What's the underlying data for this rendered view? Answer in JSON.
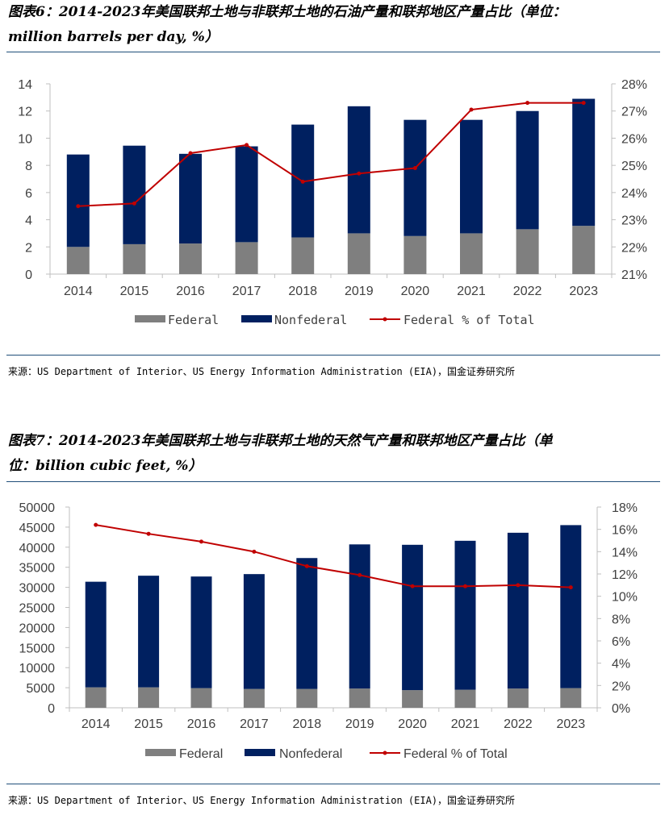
{
  "figures": [
    {
      "title": "图表6：2014-2023年美国联邦土地与非联邦土地的石油产量和联邦地区产量占比（单位：million barrels per day, %）",
      "title_line1": "图表6：2014-2023年美国联邦土地与非联邦土地的石油产量和联邦地区产量占比（单位：",
      "title_line2": "million barrels per day, %）",
      "source": "来源：US Department of Interior、US Energy Information Administration (EIA)，国金证券研究所"
    },
    {
      "title": "图表7：2014-2023年美国联邦土地与非联邦土地的天然气产量和联邦地区产量占比（单位：billion cubic feet, %）",
      "title_line1": "图表7：2014-2023年美国联邦土地与非联邦土地的天然气产量和联邦地区产量占比（单",
      "title_line2": "位：billion cubic feet, %）",
      "source": "来源：US Department of Interior、US Energy Information Administration (EIA)，国金证券研究所"
    }
  ],
  "colors": {
    "federal": "#7f7f7f",
    "nonfederal": "#002060",
    "share_line": "#c00000",
    "rule": "#1f4e79",
    "axis": "#bfbfbf"
  },
  "chart_data": [
    {
      "type": "bar",
      "stacked": true,
      "categories": [
        "2014",
        "2015",
        "2016",
        "2017",
        "2018",
        "2019",
        "2020",
        "2021",
        "2022",
        "2023"
      ],
      "series": [
        {
          "name": "Federal",
          "axis": "left",
          "values": [
            2.0,
            2.2,
            2.25,
            2.35,
            2.7,
            3.0,
            2.8,
            3.0,
            3.3,
            3.55
          ]
        },
        {
          "name": "Nonfederal",
          "axis": "left",
          "values": [
            6.8,
            7.25,
            6.6,
            7.05,
            8.3,
            9.35,
            8.55,
            8.35,
            8.7,
            9.35
          ]
        },
        {
          "name": "Federal % of Total",
          "axis": "right",
          "type": "line",
          "values": [
            23.5,
            23.6,
            25.45,
            25.75,
            24.4,
            24.7,
            24.9,
            27.05,
            27.3,
            27.3
          ]
        }
      ],
      "ylim": [
        0,
        14
      ],
      "yticks": [
        "0",
        "2",
        "4",
        "6",
        "8",
        "10",
        "12",
        "14"
      ],
      "y2lim": [
        21,
        28
      ],
      "y2ticks": [
        "21%",
        "22%",
        "23%",
        "24%",
        "25%",
        "26%",
        "27%",
        "28%"
      ],
      "grid": false,
      "legend_position": "bottom",
      "legend": [
        "Federal",
        "Nonfederal",
        "Federal % of Total"
      ]
    },
    {
      "type": "bar",
      "stacked": true,
      "categories": [
        "2014",
        "2015",
        "2016",
        "2017",
        "2018",
        "2019",
        "2020",
        "2021",
        "2022",
        "2023"
      ],
      "series": [
        {
          "name": "Federal",
          "axis": "left",
          "values": [
            5100,
            5100,
            4900,
            4700,
            4700,
            4800,
            4400,
            4500,
            4800,
            4900
          ]
        },
        {
          "name": "Nonfederal",
          "axis": "left",
          "values": [
            26300,
            27800,
            27800,
            28600,
            32600,
            35900,
            36200,
            37100,
            38800,
            40600
          ]
        },
        {
          "name": "Federal % of Total",
          "axis": "right",
          "type": "line",
          "values": [
            16.4,
            15.6,
            14.9,
            14.0,
            12.7,
            11.9,
            10.9,
            10.9,
            11.0,
            10.8
          ]
        }
      ],
      "ylim": [
        0,
        50000
      ],
      "yticks": [
        "0",
        "5000",
        "10000",
        "15000",
        "20000",
        "25000",
        "30000",
        "35000",
        "40000",
        "45000",
        "50000"
      ],
      "y2lim": [
        0,
        18
      ],
      "y2ticks": [
        "0%",
        "2%",
        "4%",
        "6%",
        "8%",
        "10%",
        "12%",
        "14%",
        "16%",
        "18%"
      ],
      "grid": false,
      "legend_position": "bottom",
      "legend": [
        "Federal",
        "Nonfederal",
        "Federal % of Total"
      ]
    }
  ]
}
